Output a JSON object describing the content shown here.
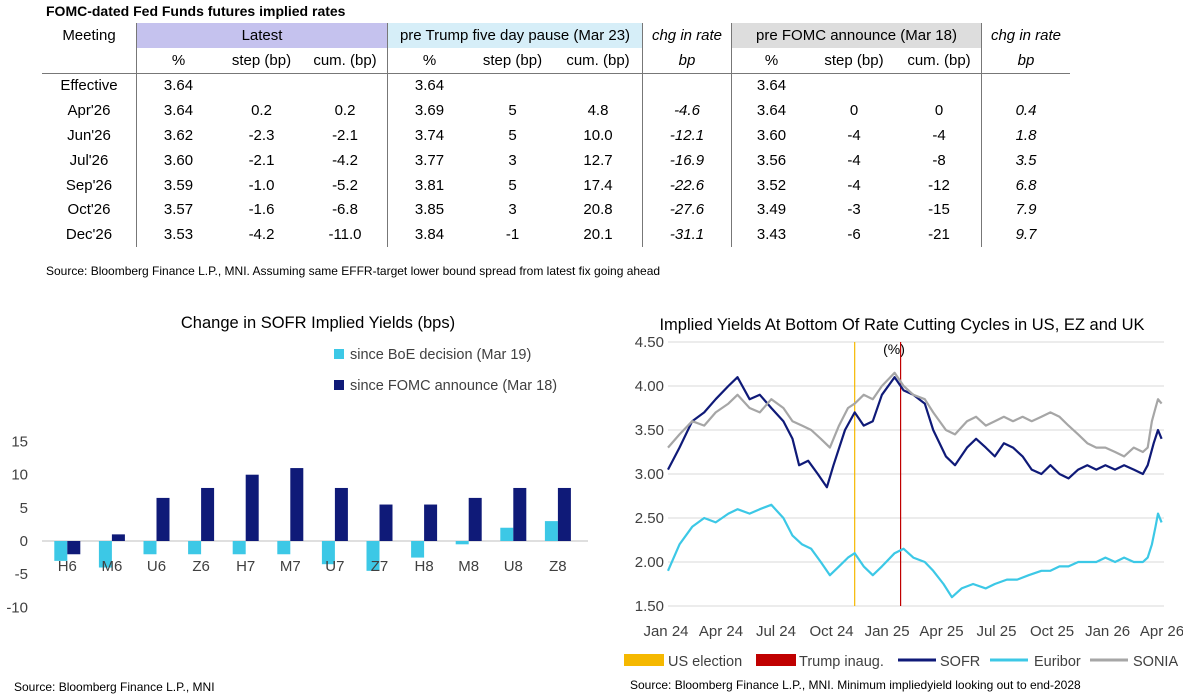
{
  "table": {
    "title": "FOMC-dated Fed Funds futures implied rates",
    "groups": {
      "meeting": "Meeting",
      "latest": "Latest",
      "pre_trump": "pre Trump five day pause (Mar 23)",
      "chg1": "chg in rate",
      "pre_fomc": "pre FOMC announce (Mar 18)",
      "chg2": "chg in rate"
    },
    "subheaders": [
      "%",
      "step (bp)",
      "cum. (bp)",
      "%",
      "step (bp)",
      "cum. (bp)",
      "bp",
      "%",
      "step (bp)",
      "cum. (bp)",
      "bp"
    ],
    "rows": [
      [
        "Effective",
        "3.64",
        "",
        "",
        "3.64",
        "",
        "",
        "",
        "3.64",
        "",
        "",
        ""
      ],
      [
        "Apr'26",
        "3.64",
        "0.2",
        "0.2",
        "3.69",
        "5",
        "4.8",
        "-4.6",
        "3.64",
        "0",
        "0",
        "0.4"
      ],
      [
        "Jun'26",
        "3.62",
        "-2.3",
        "-2.1",
        "3.74",
        "5",
        "10.0",
        "-12.1",
        "3.60",
        "-4",
        "-4",
        "1.8"
      ],
      [
        "Jul'26",
        "3.60",
        "-2.1",
        "-4.2",
        "3.77",
        "3",
        "12.7",
        "-16.9",
        "3.56",
        "-4",
        "-8",
        "3.5"
      ],
      [
        "Sep'26",
        "3.59",
        "-1.0",
        "-5.2",
        "3.81",
        "5",
        "17.4",
        "-22.6",
        "3.52",
        "-4",
        "-12",
        "6.8"
      ],
      [
        "Oct'26",
        "3.57",
        "-1.6",
        "-6.8",
        "3.85",
        "3",
        "20.8",
        "-27.6",
        "3.49",
        "-3",
        "-15",
        "7.9"
      ],
      [
        "Dec'26",
        "3.53",
        "-4.2",
        "-11.0",
        "3.84",
        "-1",
        "20.1",
        "-31.1",
        "3.43",
        "-6",
        "-21",
        "9.7"
      ]
    ],
    "source": "Source: Bloomberg Finance L.P., MNI. Assuming same  EFFR-target lower bound spread from latest fix going ahead"
  },
  "chart_data": [
    {
      "type": "bar",
      "title": "Change in SOFR Implied Yields (bps)",
      "categories": [
        "H6",
        "M6",
        "U6",
        "Z6",
        "H7",
        "M7",
        "U7",
        "Z7",
        "H8",
        "M8",
        "U8",
        "Z8"
      ],
      "series": [
        {
          "name": "since BoE decision (Mar 19)",
          "color": "#3cc8e6",
          "values": [
            -3,
            -4,
            -2,
            -2,
            -2,
            -2,
            -3.5,
            -4.5,
            -2.5,
            -0.5,
            2,
            3
          ]
        },
        {
          "name": "since FOMC announce (Mar 18)",
          "color": "#0f1a78",
          "values": [
            -2,
            1,
            6.5,
            8,
            10,
            11,
            8,
            5.5,
            5.5,
            6.5,
            8,
            8
          ]
        }
      ],
      "yticks": [
        "15",
        "10",
        "5",
        "0",
        "-5",
        "-10"
      ],
      "ylim": [
        -10,
        15
      ],
      "legend": "top-right",
      "grid": false,
      "source": "Source: Bloomberg Finance L.P., MNI"
    },
    {
      "type": "line",
      "title": "Implied Yields At Bottom Of Rate Cutting Cycles in US, EZ and UK",
      "unit_label": "(%)",
      "xticks": [
        "Jan 24",
        "Apr 24",
        "Jul 24",
        "Oct 24",
        "Jan 25",
        "Apr 25",
        "Jul 25",
        "Oct 25",
        "Jan 26",
        "Apr 26"
      ],
      "yticks": [
        "4.50",
        "4.00",
        "3.50",
        "3.00",
        "2.50",
        "2.00",
        "1.50"
      ],
      "ylim": [
        1.5,
        4.5
      ],
      "grid": true,
      "markers": [
        {
          "name": "US election",
          "color": "#f5b800",
          "date": "2024-11-05"
        },
        {
          "name": "Trump inaug.",
          "color": "#c00000",
          "date": "2025-01-20"
        }
      ],
      "series": [
        {
          "name": "SOFR",
          "color": "#0f1a78",
          "points": [
            [
              "2024-01-01",
              3.05
            ],
            [
              "2024-01-20",
              3.3
            ],
            [
              "2024-02-10",
              3.6
            ],
            [
              "2024-03-01",
              3.7
            ],
            [
              "2024-03-20",
              3.85
            ],
            [
              "2024-04-10",
              4.0
            ],
            [
              "2024-04-25",
              4.1
            ],
            [
              "2024-05-15",
              3.85
            ],
            [
              "2024-06-01",
              3.9
            ],
            [
              "2024-06-20",
              3.75
            ],
            [
              "2024-07-10",
              3.6
            ],
            [
              "2024-07-25",
              3.4
            ],
            [
              "2024-08-05",
              3.1
            ],
            [
              "2024-08-20",
              3.15
            ],
            [
              "2024-09-05",
              3.0
            ],
            [
              "2024-09-20",
              2.85
            ],
            [
              "2024-10-01",
              3.1
            ],
            [
              "2024-10-20",
              3.5
            ],
            [
              "2024-11-05",
              3.7
            ],
            [
              "2024-11-20",
              3.55
            ],
            [
              "2024-12-05",
              3.6
            ],
            [
              "2024-12-20",
              3.9
            ],
            [
              "2025-01-10",
              4.1
            ],
            [
              "2025-01-25",
              3.95
            ],
            [
              "2025-02-10",
              3.9
            ],
            [
              "2025-03-01",
              3.8
            ],
            [
              "2025-03-15",
              3.5
            ],
            [
              "2025-04-05",
              3.2
            ],
            [
              "2025-04-20",
              3.1
            ],
            [
              "2025-05-10",
              3.3
            ],
            [
              "2025-05-25",
              3.4
            ],
            [
              "2025-06-10",
              3.3
            ],
            [
              "2025-06-25",
              3.2
            ],
            [
              "2025-07-10",
              3.35
            ],
            [
              "2025-07-25",
              3.3
            ],
            [
              "2025-08-10",
              3.2
            ],
            [
              "2025-08-25",
              3.05
            ],
            [
              "2025-09-10",
              3.0
            ],
            [
              "2025-09-25",
              3.1
            ],
            [
              "2025-10-10",
              3.0
            ],
            [
              "2025-10-25",
              2.95
            ],
            [
              "2025-11-10",
              3.05
            ],
            [
              "2025-11-25",
              3.1
            ],
            [
              "2025-12-10",
              3.05
            ],
            [
              "2025-12-25",
              3.1
            ],
            [
              "2026-01-10",
              3.05
            ],
            [
              "2026-01-25",
              3.1
            ],
            [
              "2026-02-10",
              3.05
            ],
            [
              "2026-02-25",
              3.0
            ],
            [
              "2026-03-05",
              3.1
            ],
            [
              "2026-03-15",
              3.35
            ],
            [
              "2026-03-22",
              3.5
            ],
            [
              "2026-03-28",
              3.4
            ]
          ]
        },
        {
          "name": "Euribor",
          "color": "#3cc8e6",
          "points": [
            [
              "2024-01-01",
              1.9
            ],
            [
              "2024-01-20",
              2.2
            ],
            [
              "2024-02-10",
              2.4
            ],
            [
              "2024-03-01",
              2.5
            ],
            [
              "2024-03-20",
              2.45
            ],
            [
              "2024-04-10",
              2.55
            ],
            [
              "2024-04-25",
              2.6
            ],
            [
              "2024-05-15",
              2.55
            ],
            [
              "2024-06-01",
              2.6
            ],
            [
              "2024-06-20",
              2.65
            ],
            [
              "2024-07-10",
              2.5
            ],
            [
              "2024-07-25",
              2.3
            ],
            [
              "2024-08-10",
              2.2
            ],
            [
              "2024-08-25",
              2.15
            ],
            [
              "2024-09-10",
              2.0
            ],
            [
              "2024-09-25",
              1.85
            ],
            [
              "2024-10-10",
              1.95
            ],
            [
              "2024-10-25",
              2.05
            ],
            [
              "2024-11-05",
              2.1
            ],
            [
              "2024-11-20",
              1.95
            ],
            [
              "2024-12-05",
              1.85
            ],
            [
              "2024-12-20",
              1.95
            ],
            [
              "2025-01-10",
              2.1
            ],
            [
              "2025-01-25",
              2.15
            ],
            [
              "2025-02-10",
              2.05
            ],
            [
              "2025-03-01",
              2.0
            ],
            [
              "2025-03-15",
              1.9
            ],
            [
              "2025-04-01",
              1.75
            ],
            [
              "2025-04-15",
              1.6
            ],
            [
              "2025-05-01",
              1.7
            ],
            [
              "2025-05-20",
              1.75
            ],
            [
              "2025-06-10",
              1.7
            ],
            [
              "2025-06-25",
              1.75
            ],
            [
              "2025-07-15",
              1.8
            ],
            [
              "2025-08-01",
              1.8
            ],
            [
              "2025-08-20",
              1.85
            ],
            [
              "2025-09-10",
              1.9
            ],
            [
              "2025-09-25",
              1.9
            ],
            [
              "2025-10-10",
              1.95
            ],
            [
              "2025-10-25",
              1.95
            ],
            [
              "2025-11-10",
              2.0
            ],
            [
              "2025-11-25",
              2.0
            ],
            [
              "2025-12-10",
              2.0
            ],
            [
              "2025-12-25",
              2.05
            ],
            [
              "2026-01-10",
              2.0
            ],
            [
              "2026-01-25",
              2.05
            ],
            [
              "2026-02-10",
              2.0
            ],
            [
              "2026-02-25",
              2.0
            ],
            [
              "2026-03-05",
              2.05
            ],
            [
              "2026-03-12",
              2.2
            ],
            [
              "2026-03-18",
              2.4
            ],
            [
              "2026-03-22",
              2.55
            ],
            [
              "2026-03-28",
              2.45
            ]
          ]
        },
        {
          "name": "SONIA",
          "color": "#a6a6a6",
          "points": [
            [
              "2024-01-01",
              3.3
            ],
            [
              "2024-01-20",
              3.45
            ],
            [
              "2024-02-10",
              3.6
            ],
            [
              "2024-03-01",
              3.55
            ],
            [
              "2024-03-20",
              3.7
            ],
            [
              "2024-04-10",
              3.8
            ],
            [
              "2024-04-25",
              3.9
            ],
            [
              "2024-05-15",
              3.75
            ],
            [
              "2024-06-01",
              3.7
            ],
            [
              "2024-06-20",
              3.85
            ],
            [
              "2024-07-10",
              3.75
            ],
            [
              "2024-07-25",
              3.6
            ],
            [
              "2024-08-10",
              3.55
            ],
            [
              "2024-08-25",
              3.5
            ],
            [
              "2024-09-10",
              3.4
            ],
            [
              "2024-09-25",
              3.3
            ],
            [
              "2024-10-10",
              3.55
            ],
            [
              "2024-10-25",
              3.75
            ],
            [
              "2024-11-05",
              3.8
            ],
            [
              "2024-11-20",
              3.9
            ],
            [
              "2024-12-05",
              3.85
            ],
            [
              "2024-12-20",
              4.0
            ],
            [
              "2025-01-10",
              4.15
            ],
            [
              "2025-01-25",
              4.0
            ],
            [
              "2025-02-10",
              3.9
            ],
            [
              "2025-03-01",
              3.85
            ],
            [
              "2025-03-15",
              3.7
            ],
            [
              "2025-04-05",
              3.5
            ],
            [
              "2025-04-20",
              3.45
            ],
            [
              "2025-05-10",
              3.6
            ],
            [
              "2025-05-25",
              3.65
            ],
            [
              "2025-06-10",
              3.55
            ],
            [
              "2025-06-25",
              3.6
            ],
            [
              "2025-07-10",
              3.65
            ],
            [
              "2025-07-25",
              3.6
            ],
            [
              "2025-08-10",
              3.65
            ],
            [
              "2025-08-25",
              3.6
            ],
            [
              "2025-09-10",
              3.65
            ],
            [
              "2025-09-25",
              3.7
            ],
            [
              "2025-10-10",
              3.65
            ],
            [
              "2025-10-25",
              3.55
            ],
            [
              "2025-11-10",
              3.45
            ],
            [
              "2025-11-25",
              3.35
            ],
            [
              "2025-12-10",
              3.3
            ],
            [
              "2025-12-25",
              3.3
            ],
            [
              "2026-01-10",
              3.25
            ],
            [
              "2026-01-25",
              3.2
            ],
            [
              "2026-02-10",
              3.3
            ],
            [
              "2026-02-25",
              3.25
            ],
            [
              "2026-03-05",
              3.3
            ],
            [
              "2026-03-12",
              3.6
            ],
            [
              "2026-03-18",
              3.75
            ],
            [
              "2026-03-22",
              3.85
            ],
            [
              "2026-03-28",
              3.8
            ]
          ]
        }
      ],
      "legend": "bottom",
      "source": "Source: Bloomberg Finance L.P., MNI. Minimum impliedyield looking out to end-2028"
    }
  ]
}
